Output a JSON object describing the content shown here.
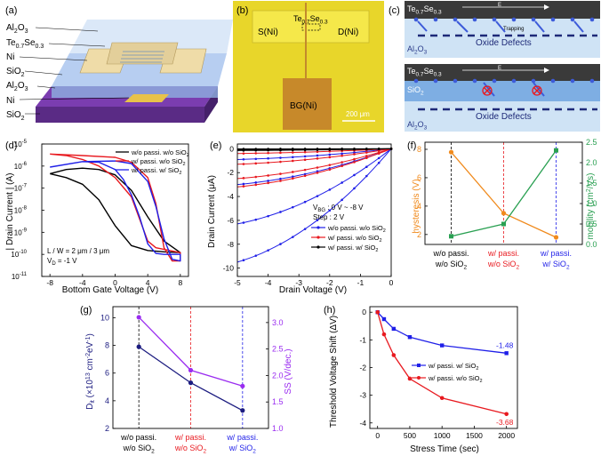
{
  "panels": {
    "a": {
      "label": "(a)",
      "layers": [
        "Al",
        "Te",
        "Ni",
        "SiO",
        "Al",
        "Ni",
        "SiO"
      ],
      "layer_subs": [
        [
          "2",
          "O",
          "3"
        ],
        [
          "0.7",
          "Se",
          "0.3"
        ],
        [
          "",
          "",
          ""
        ],
        [
          "2",
          "",
          ""
        ],
        [
          "2",
          "O",
          "3"
        ],
        [
          "",
          "",
          ""
        ],
        [
          "2",
          "",
          ""
        ]
      ]
    },
    "b": {
      "label": "(b)",
      "channel": "Te",
      "channel_sub": [
        "0.7",
        "Se",
        "0.3"
      ],
      "source": "S(Ni)",
      "drain": "D(Ni)",
      "gate": "BG(Ni)",
      "scale": "200 μm"
    },
    "c": {
      "label": "(c)",
      "top": {
        "channel": "Te",
        "channel_sub": [
          "0.7",
          "Se",
          "0.3"
        ],
        "field": "E",
        "trapping": "Trapping",
        "defects": "Oxide Defects",
        "dielectric": "Al",
        "dielectric_sub": [
          "2",
          "O",
          "3"
        ]
      },
      "bottom": {
        "channel": "Te",
        "channel_sub": [
          "0.7",
          "Se",
          "0.3"
        ],
        "field": "E",
        "passivation": "SiO",
        "passivation_sub": "2",
        "defects": "Oxide Defects",
        "dielectric": "Al",
        "dielectric_sub": [
          "2",
          "O",
          "3"
        ]
      }
    }
  },
  "colors": {
    "black": "#000000",
    "red": "#e8191f",
    "blue": "#1f1fe8",
    "orange": "#f08a1c",
    "green": "#2aa052",
    "purple": "#9a2cf0",
    "navy": "#1c1c80"
  },
  "chart_data": [
    {
      "id": "d",
      "label": "(d)",
      "type": "line",
      "xlabel": "Bottom Gate Voltage (V)",
      "ylabel": "| Drain Current | (A)",
      "xlim": [
        -9,
        9
      ],
      "ylim_log10": [
        -11,
        -5
      ],
      "xticks": [
        "-8",
        "-4",
        "0",
        "4",
        "8"
      ],
      "yticks": [
        "10",
        "10",
        "10",
        "10",
        "10",
        "10",
        "10"
      ],
      "ytick_exps": [
        "-11",
        "-10",
        "-9",
        "-8",
        "-7",
        "-6",
        "-5"
      ],
      "annotation": [
        "L / W = 2 μm / 3 μm",
        "V",
        "D",
        " = -1 V"
      ],
      "legend": [
        "w/o passi. w/o SiO",
        "w/ passi. w/o SiO",
        "w/ passi. w/ SiO"
      ],
      "legend_sub": "2",
      "series": [
        {
          "name": "w/o passi. w/o SiO2",
          "color": "#000000",
          "fwd": [
            [
              -8,
              4.5e-07
            ],
            [
              -6,
              3e-07
            ],
            [
              -4,
              1.5e-07
            ],
            [
              -2,
              3e-08
            ],
            [
              0,
              2e-09
            ],
            [
              2,
              2.5e-10
            ],
            [
              4,
              1.5e-10
            ],
            [
              6,
              1.3e-10
            ],
            [
              8,
              1.2e-10
            ]
          ],
          "rev": [
            [
              8,
              1.2e-10
            ],
            [
              6,
              4e-10
            ],
            [
              4,
              5e-09
            ],
            [
              2,
              8e-08
            ],
            [
              0,
              4e-07
            ],
            [
              -2,
              7e-07
            ],
            [
              -4,
              8e-07
            ],
            [
              -6,
              7e-07
            ],
            [
              -8,
              4.5e-07
            ]
          ]
        },
        {
          "name": "w/ passi. w/o SiO2",
          "color": "#e8191f",
          "fwd": [
            [
              -8,
              3.5e-06
            ],
            [
              -6,
              3e-06
            ],
            [
              -4,
              2e-06
            ],
            [
              -2,
              1e-06
            ],
            [
              0,
              3e-07
            ],
            [
              2,
              4e-08
            ],
            [
              3,
              4e-09
            ],
            [
              4,
              4e-10
            ],
            [
              5,
              2e-10
            ],
            [
              8,
              1.2e-10
            ]
          ],
          "rev": [
            [
              8,
              5e-11
            ],
            [
              7,
              5e-11
            ],
            [
              6,
              2e-10
            ],
            [
              5,
              2e-08
            ],
            [
              4,
              3e-07
            ],
            [
              2,
              1.5e-06
            ],
            [
              0,
              2.5e-06
            ],
            [
              -4,
              3e-06
            ],
            [
              -8,
              3.5e-06
            ]
          ]
        },
        {
          "name": "w/ passi. w/ SiO2",
          "color": "#1f1fe8",
          "fwd": [
            [
              -8,
              9e-07
            ],
            [
              -4,
              1.6e-06
            ],
            [
              -2,
              1.5e-06
            ],
            [
              0,
              7e-07
            ],
            [
              1,
              2.5e-07
            ],
            [
              2,
              5e-08
            ],
            [
              3,
              5e-09
            ],
            [
              4,
              3e-10
            ],
            [
              5,
              1.1e-10
            ],
            [
              6,
              1e-10
            ],
            [
              8,
              1e-10
            ]
          ],
          "rev": [
            [
              8,
              5e-11
            ],
            [
              7,
              6e-11
            ],
            [
              6,
              5e-10
            ],
            [
              5,
              1.5e-08
            ],
            [
              4,
              2e-07
            ],
            [
              2,
              1.3e-06
            ],
            [
              0,
              1.7e-06
            ],
            [
              -4,
              1.6e-06
            ],
            [
              -8,
              9e-07
            ]
          ]
        }
      ]
    },
    {
      "id": "e",
      "label": "(e)",
      "type": "line",
      "xlabel": "Drain Voltage (V)",
      "ylabel": "Drain Current (μA)",
      "xlim": [
        -5,
        0
      ],
      "ylim": [
        -10.7,
        0.4
      ],
      "xticks": [
        -5,
        -4,
        -3,
        -2,
        -1,
        0
      ],
      "yticks": [
        0,
        -2,
        -4,
        -6,
        -8,
        -10
      ],
      "annotation": [
        "V",
        "BG",
        " : 0 V ~ -8 V",
        "Step : 2 V"
      ],
      "legend": [
        "w/o passi. w/o SiO",
        "w/ passi. w/o SiO",
        "w/ passi. w/ SiO"
      ],
      "legend_sub": "2",
      "families": [
        {
          "name": "w/o passi. w/o SiO2",
          "color": "#1f1fe8",
          "end_values": [
            -9.5,
            -6.3,
            -3.0,
            -0.9,
            -0.1
          ]
        },
        {
          "name": "w/ passi. w/o SiO2",
          "color": "#e8191f",
          "end_values": [
            -3.2,
            -2.5,
            -1.3,
            -0.4,
            -0.05
          ]
        },
        {
          "name": "w/ passi. w/ SiO2",
          "color": "#000000",
          "end_values": [
            -0.15,
            -0.1,
            -0.06,
            -0.03,
            -0.01
          ]
        }
      ]
    },
    {
      "id": "f",
      "label": "(f)",
      "type": "line",
      "categories": [
        "w/o passi.",
        "w/ passi.",
        "w/ passi."
      ],
      "categories2": [
        "w/o SiO",
        "w/o SiO",
        "w/ SiO"
      ],
      "cat_sub": "2",
      "ylabel_left": "hysteresis (V)",
      "ylabel_right": [
        "mobility (cm",
        "2",
        "/Vs)"
      ],
      "ylim_left": [
        1.3,
        8.5
      ],
      "ylim_right": [
        0,
        2.5
      ],
      "yticks_left": [
        2,
        4,
        6,
        8
      ],
      "yticks_right": [
        "0.0",
        "0.5",
        "1.0",
        "1.5",
        "2.0",
        "2.5"
      ],
      "series": [
        {
          "name": "hysteresis",
          "axis": "left",
          "color": "#f08a1c",
          "values": [
            7.8,
            3.5,
            1.8
          ]
        },
        {
          "name": "mobility",
          "axis": "right",
          "color": "#2aa052",
          "values": [
            0.2,
            0.5,
            2.3
          ]
        }
      ]
    },
    {
      "id": "g",
      "label": "(g)",
      "type": "line",
      "categories": [
        "w/o passi.",
        "w/ passi.",
        "w/ passi."
      ],
      "categories2": [
        "w/o SiO",
        "w/o SiO",
        "w/ SiO"
      ],
      "cat_sub": "2",
      "ylabel_left": [
        "D",
        "it",
        " (×10",
        "13",
        " cm",
        "-2",
        "eV",
        "-1",
        ")"
      ],
      "ylabel_right": "SS (V/dec.)",
      "ylim_left": [
        2,
        10.8
      ],
      "ylim_right": [
        1.0,
        3.3
      ],
      "yticks_left": [
        2,
        4,
        6,
        8,
        10
      ],
      "yticks_right": [
        "1.0",
        "1.5",
        "2.0",
        "2.5",
        "3.0"
      ],
      "series": [
        {
          "name": "Dit",
          "axis": "left",
          "color": "#1c1c80",
          "values": [
            7.9,
            5.3,
            3.3
          ]
        },
        {
          "name": "SS",
          "axis": "right",
          "color": "#9a2cf0",
          "values": [
            3.1,
            2.1,
            1.8
          ]
        }
      ]
    },
    {
      "id": "h",
      "label": "(h)",
      "type": "line",
      "xlabel": "Stress Time (sec)",
      "ylabel": "Threshold Voltage Shift (ΔV)",
      "xlim": [
        -120,
        2170
      ],
      "ylim": [
        -4.2,
        0.2
      ],
      "xticks": [
        0,
        500,
        1000,
        1500,
        2000
      ],
      "yticks": [
        0,
        -1,
        -2,
        -3,
        -4
      ],
      "legend": [
        "w/ passi. w/ SiO",
        "w/ passi. w/o SiO"
      ],
      "legend_sub": "2",
      "x": [
        0,
        100,
        250,
        500,
        1000,
        2000
      ],
      "series": [
        {
          "name": "w/ passi. w/ SiO2",
          "color": "#1f1fe8",
          "values": [
            0,
            -0.25,
            -0.6,
            -0.9,
            -1.2,
            -1.48
          ],
          "end_label": "-1.48"
        },
        {
          "name": "w/ passi. w/o SiO2",
          "color": "#e8191f",
          "values": [
            0,
            -0.8,
            -1.55,
            -2.4,
            -3.1,
            -3.68
          ],
          "end_label": "-3.68"
        }
      ]
    }
  ]
}
